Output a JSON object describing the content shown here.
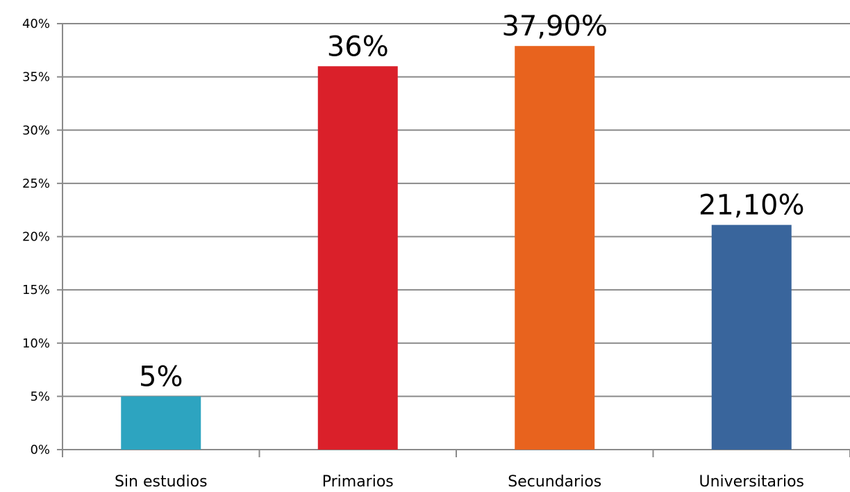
{
  "chart_data": {
    "type": "bar",
    "title": "",
    "xlabel": "",
    "ylabel": "",
    "categories": [
      "Sin estudios",
      "Primarios",
      "Secundarios",
      "Universitarios"
    ],
    "values": [
      5,
      36,
      37.9,
      21.1
    ],
    "data_labels": [
      "5%",
      "36%",
      "37,90%",
      "21,10%"
    ],
    "colors": [
      "#2DA4C0",
      "#DA202A",
      "#E8631E",
      "#39659C"
    ],
    "ylim": [
      0,
      40
    ],
    "yticks": [
      0,
      5,
      10,
      15,
      20,
      25,
      30,
      35,
      40
    ],
    "ytick_labels": [
      "0%",
      "5%",
      "10%",
      "15%",
      "20%",
      "25%",
      "30%",
      "35%",
      "40%"
    ],
    "grid": true,
    "legend": "none"
  }
}
